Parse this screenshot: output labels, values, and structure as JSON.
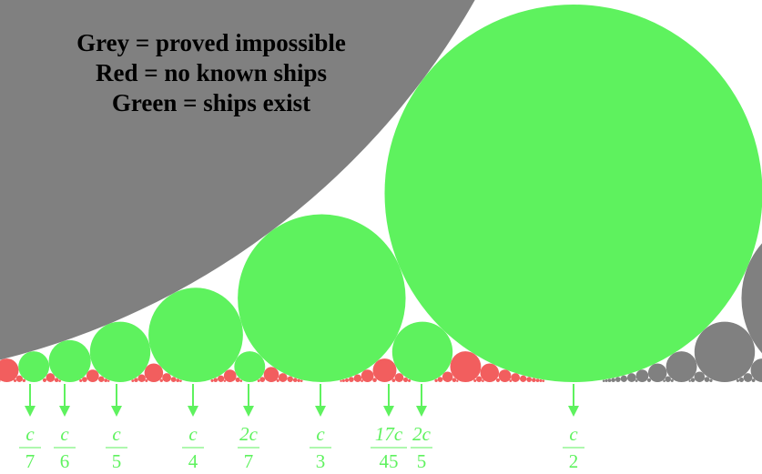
{
  "legend": [
    "Grey = proved impossible",
    "Red = no known ships",
    "Green = ships exist"
  ],
  "speeds": [
    {
      "numerator": "c",
      "denominator": "7"
    },
    {
      "numerator": "c",
      "denominator": "6"
    },
    {
      "numerator": "c",
      "denominator": "5"
    },
    {
      "numerator": "c",
      "denominator": "4"
    },
    {
      "numerator": "2c",
      "denominator": "7"
    },
    {
      "numerator": "c",
      "denominator": "3"
    },
    {
      "numerator": "17c",
      "denominator": "45"
    },
    {
      "numerator": "2c",
      "denominator": "5"
    },
    {
      "numerator": "c",
      "denominator": "2"
    }
  ]
}
